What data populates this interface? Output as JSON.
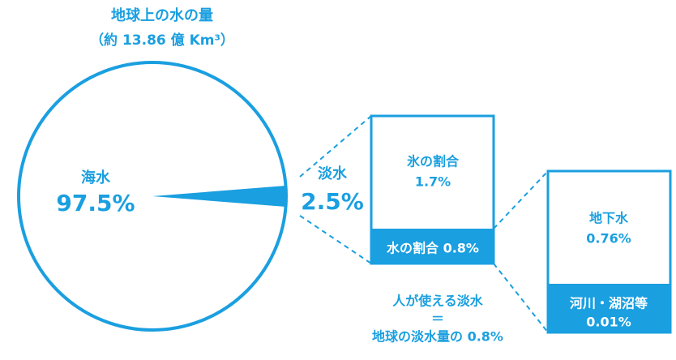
{
  "chart_data": {
    "type": "pie",
    "title": "地球上の水の量",
    "subtitle": "（約 13.86 億 Km³）",
    "categories": [
      "海水",
      "淡水"
    ],
    "values": [
      97.5,
      2.5
    ],
    "value_labels": [
      "97.5%",
      "2.5%"
    ],
    "colors": [
      "#ffffff",
      "#1a9fe0"
    ],
    "annotations": [
      "氷の割合",
      "1.7%",
      "水の割合 0.8%",
      "人が使える淡水",
      "＝",
      "地球の淡水量の 0.8%",
      "地下水",
      "0.76%",
      "河川・湖沼等",
      "0.01%"
    ]
  }
}
